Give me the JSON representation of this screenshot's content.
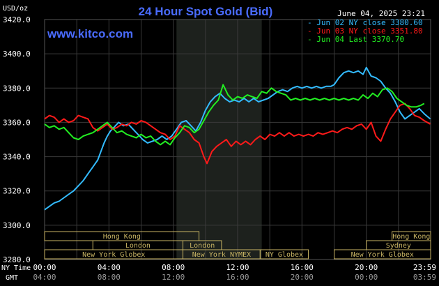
{
  "chart_data": {
    "type": "line",
    "title": "24 Hour Spot Gold (Bid)",
    "website": "www.kitco.com",
    "unit_label": "USD/oz",
    "date_label": "June 04, 2025 23:21",
    "ylim": [
      3280,
      3420
    ],
    "yticks": [
      "3420.0",
      "3400.0",
      "3380.0",
      "3360.0",
      "3340.0",
      "3320.0",
      "3300.0",
      "3280.0"
    ],
    "ytick_values": [
      3420,
      3400,
      3380,
      3360,
      3340,
      3320,
      3300,
      3280
    ],
    "xlim": [
      0,
      24
    ],
    "x_row1_label": "NY Time",
    "x_row2_label": "GMT",
    "xticks_ny": [
      "00:00",
      "04:00",
      "08:00",
      "12:00",
      "16:00",
      "20:00",
      "23:59"
    ],
    "xticks_gmt": [
      "04:00",
      "08:00",
      "12:00",
      "16:00",
      "20:00",
      "00:00",
      "03:59"
    ],
    "xtick_hours": [
      0,
      4,
      8,
      12,
      16,
      20,
      23.98
    ],
    "shaded_session": [
      8.2,
      13.5
    ],
    "colors": {
      "background": "#000000",
      "grid": "#3a3a3a",
      "shade": "#1d211d",
      "text": "#ffffff",
      "title": "#4a6cff",
      "sessions": "#c8b464"
    },
    "series": [
      {
        "name": "Jun 02 NY close 3380.60",
        "color": "#33bbff",
        "points": [
          [
            0.0,
            3309
          ],
          [
            0.3,
            3311
          ],
          [
            0.6,
            3313
          ],
          [
            0.9,
            3314
          ],
          [
            1.2,
            3316
          ],
          [
            1.5,
            3318
          ],
          [
            1.8,
            3320
          ],
          [
            2.1,
            3323
          ],
          [
            2.4,
            3326
          ],
          [
            2.7,
            3330
          ],
          [
            3.0,
            3334
          ],
          [
            3.3,
            3338
          ],
          [
            3.5,
            3343
          ],
          [
            3.7,
            3348
          ],
          [
            3.9,
            3352
          ],
          [
            4.1,
            3355
          ],
          [
            4.3,
            3357
          ],
          [
            4.6,
            3360
          ],
          [
            4.9,
            3358
          ],
          [
            5.2,
            3359
          ],
          [
            5.5,
            3356
          ],
          [
            5.8,
            3353
          ],
          [
            6.1,
            3350
          ],
          [
            6.4,
            3348
          ],
          [
            6.7,
            3349
          ],
          [
            7.0,
            3350
          ],
          [
            7.3,
            3352
          ],
          [
            7.6,
            3350
          ],
          [
            7.9,
            3352
          ],
          [
            8.2,
            3356
          ],
          [
            8.5,
            3360
          ],
          [
            8.8,
            3361
          ],
          [
            9.1,
            3358
          ],
          [
            9.4,
            3355
          ],
          [
            9.7,
            3360
          ],
          [
            10.0,
            3367
          ],
          [
            10.3,
            3372
          ],
          [
            10.6,
            3375
          ],
          [
            10.9,
            3377
          ],
          [
            11.2,
            3374
          ],
          [
            11.5,
            3372
          ],
          [
            11.8,
            3373
          ],
          [
            12.1,
            3372
          ],
          [
            12.4,
            3374
          ],
          [
            12.7,
            3372
          ],
          [
            13.0,
            3374
          ],
          [
            13.3,
            3372
          ],
          [
            13.6,
            3373
          ],
          [
            13.9,
            3374
          ],
          [
            14.2,
            3376
          ],
          [
            14.5,
            3378
          ],
          [
            14.8,
            3379
          ],
          [
            15.1,
            3378
          ],
          [
            15.4,
            3380
          ],
          [
            15.7,
            3381
          ],
          [
            16.0,
            3380
          ],
          [
            16.3,
            3381
          ],
          [
            16.6,
            3380
          ],
          [
            16.9,
            3381
          ],
          [
            17.2,
            3380
          ],
          [
            17.5,
            3381
          ],
          [
            17.8,
            3381
          ],
          [
            18.0,
            3382
          ],
          [
            18.3,
            3386
          ],
          [
            18.6,
            3389
          ],
          [
            18.9,
            3390
          ],
          [
            19.2,
            3389
          ],
          [
            19.5,
            3390
          ],
          [
            19.8,
            3388
          ],
          [
            20.0,
            3392
          ],
          [
            20.3,
            3387
          ],
          [
            20.6,
            3386
          ],
          [
            20.9,
            3384
          ],
          [
            21.2,
            3380
          ],
          [
            21.5,
            3377
          ],
          [
            21.8,
            3372
          ],
          [
            22.1,
            3366
          ],
          [
            22.4,
            3362
          ],
          [
            22.7,
            3364
          ],
          [
            23.0,
            3366
          ],
          [
            23.3,
            3368
          ],
          [
            23.6,
            3365
          ],
          [
            23.98,
            3362
          ]
        ]
      },
      {
        "name": "Jun 03 NY close 3351.80",
        "color": "#ff1a1a",
        "points": [
          [
            0.0,
            3362
          ],
          [
            0.3,
            3364
          ],
          [
            0.6,
            3363
          ],
          [
            0.9,
            3360
          ],
          [
            1.2,
            3362
          ],
          [
            1.5,
            3360
          ],
          [
            1.8,
            3361
          ],
          [
            2.1,
            3364
          ],
          [
            2.4,
            3363
          ],
          [
            2.7,
            3362
          ],
          [
            3.0,
            3357
          ],
          [
            3.3,
            3355
          ],
          [
            3.6,
            3357
          ],
          [
            3.9,
            3359
          ],
          [
            4.2,
            3356
          ],
          [
            4.5,
            3357
          ],
          [
            4.8,
            3359
          ],
          [
            5.1,
            3358
          ],
          [
            5.4,
            3360
          ],
          [
            5.7,
            3359
          ],
          [
            6.0,
            3361
          ],
          [
            6.3,
            3360
          ],
          [
            6.6,
            3358
          ],
          [
            6.9,
            3356
          ],
          [
            7.2,
            3354
          ],
          [
            7.5,
            3353
          ],
          [
            7.8,
            3350
          ],
          [
            8.1,
            3352
          ],
          [
            8.4,
            3358
          ],
          [
            8.7,
            3356
          ],
          [
            9.0,
            3354
          ],
          [
            9.3,
            3350
          ],
          [
            9.6,
            3348
          ],
          [
            9.9,
            3340
          ],
          [
            10.1,
            3336
          ],
          [
            10.4,
            3343
          ],
          [
            10.7,
            3346
          ],
          [
            11.0,
            3348
          ],
          [
            11.3,
            3350
          ],
          [
            11.6,
            3346
          ],
          [
            11.9,
            3349
          ],
          [
            12.2,
            3347
          ],
          [
            12.5,
            3349
          ],
          [
            12.8,
            3347
          ],
          [
            13.1,
            3350
          ],
          [
            13.4,
            3352
          ],
          [
            13.7,
            3350
          ],
          [
            14.0,
            3353
          ],
          [
            14.3,
            3352
          ],
          [
            14.6,
            3354
          ],
          [
            14.9,
            3352
          ],
          [
            15.2,
            3354
          ],
          [
            15.5,
            3352
          ],
          [
            15.8,
            3353
          ],
          [
            16.1,
            3352
          ],
          [
            16.4,
            3353
          ],
          [
            16.7,
            3352
          ],
          [
            17.0,
            3354
          ],
          [
            17.3,
            3353
          ],
          [
            17.6,
            3354
          ],
          [
            17.9,
            3355
          ],
          [
            18.2,
            3354
          ],
          [
            18.5,
            3356
          ],
          [
            18.8,
            3357
          ],
          [
            19.1,
            3356
          ],
          [
            19.4,
            3358
          ],
          [
            19.7,
            3359
          ],
          [
            20.0,
            3356
          ],
          [
            20.3,
            3360
          ],
          [
            20.6,
            3352
          ],
          [
            20.9,
            3349
          ],
          [
            21.2,
            3356
          ],
          [
            21.5,
            3362
          ],
          [
            21.8,
            3366
          ],
          [
            22.1,
            3370
          ],
          [
            22.4,
            3371
          ],
          [
            22.7,
            3368
          ],
          [
            23.0,
            3364
          ],
          [
            23.3,
            3363
          ],
          [
            23.6,
            3361
          ],
          [
            23.98,
            3359
          ]
        ]
      },
      {
        "name": "Jun 04 Last 3370.70",
        "color": "#22ee22",
        "points": [
          [
            0.0,
            3359
          ],
          [
            0.3,
            3357
          ],
          [
            0.6,
            3358
          ],
          [
            0.9,
            3356
          ],
          [
            1.2,
            3357
          ],
          [
            1.5,
            3354
          ],
          [
            1.8,
            3351
          ],
          [
            2.1,
            3350
          ],
          [
            2.4,
            3352
          ],
          [
            2.7,
            3353
          ],
          [
            3.0,
            3354
          ],
          [
            3.3,
            3356
          ],
          [
            3.6,
            3358
          ],
          [
            3.9,
            3360
          ],
          [
            4.2,
            3357
          ],
          [
            4.5,
            3354
          ],
          [
            4.8,
            3355
          ],
          [
            5.1,
            3353
          ],
          [
            5.4,
            3352
          ],
          [
            5.7,
            3351
          ],
          [
            6.0,
            3353
          ],
          [
            6.3,
            3351
          ],
          [
            6.6,
            3352
          ],
          [
            6.9,
            3349
          ],
          [
            7.2,
            3347
          ],
          [
            7.5,
            3349
          ],
          [
            7.8,
            3347
          ],
          [
            8.1,
            3351
          ],
          [
            8.4,
            3354
          ],
          [
            8.7,
            3358
          ],
          [
            9.0,
            3357
          ],
          [
            9.3,
            3354
          ],
          [
            9.6,
            3356
          ],
          [
            9.9,
            3361
          ],
          [
            10.2,
            3366
          ],
          [
            10.5,
            3370
          ],
          [
            10.8,
            3373
          ],
          [
            11.1,
            3382
          ],
          [
            11.4,
            3376
          ],
          [
            11.7,
            3373
          ],
          [
            12.0,
            3375
          ],
          [
            12.3,
            3374
          ],
          [
            12.6,
            3376
          ],
          [
            12.9,
            3375
          ],
          [
            13.2,
            3374
          ],
          [
            13.5,
            3378
          ],
          [
            13.8,
            3377
          ],
          [
            14.1,
            3380
          ],
          [
            14.4,
            3378
          ],
          [
            14.7,
            3377
          ],
          [
            15.0,
            3376
          ],
          [
            15.3,
            3373
          ],
          [
            15.6,
            3374
          ],
          [
            15.9,
            3373
          ],
          [
            16.2,
            3374
          ],
          [
            16.5,
            3373
          ],
          [
            16.8,
            3374
          ],
          [
            17.1,
            3373
          ],
          [
            17.4,
            3374
          ],
          [
            17.7,
            3373
          ],
          [
            18.0,
            3374
          ],
          [
            18.3,
            3373
          ],
          [
            18.6,
            3374
          ],
          [
            18.9,
            3373
          ],
          [
            19.2,
            3374
          ],
          [
            19.5,
            3373
          ],
          [
            19.8,
            3376
          ],
          [
            20.1,
            3374
          ],
          [
            20.4,
            3377
          ],
          [
            20.7,
            3375
          ],
          [
            21.0,
            3379
          ],
          [
            21.3,
            3380
          ],
          [
            21.6,
            3378
          ],
          [
            21.9,
            3374
          ],
          [
            22.2,
            3372
          ],
          [
            22.5,
            3370
          ],
          [
            22.8,
            3369
          ],
          [
            23.1,
            3369
          ],
          [
            23.4,
            3370
          ],
          [
            23.6,
            3371
          ]
        ]
      }
    ],
    "sessions": [
      {
        "name": "Hong Kong",
        "start": 0,
        "end": 9.6,
        "row": 0
      },
      {
        "name": "Hong Kong",
        "start": 21.6,
        "end": 24,
        "row": 0
      },
      {
        "name": "London",
        "start": 3.0,
        "end": 8.6,
        "row": 1
      },
      {
        "name": "London",
        "start": 8.6,
        "end": 11.0,
        "row": 1
      },
      {
        "name": "Sydney",
        "start": 20.0,
        "end": 24,
        "row": 1
      },
      {
        "name": "New York Globex",
        "start": 0,
        "end": 8.6,
        "row": 2
      },
      {
        "name": "New York NYMEX",
        "start": 8.6,
        "end": 13.4,
        "row": 2
      },
      {
        "name": "NY Globex",
        "start": 13.4,
        "end": 16.4,
        "row": 2
      },
      {
        "name": "New York Globex",
        "start": 18.0,
        "end": 24,
        "row": 2
      }
    ]
  }
}
